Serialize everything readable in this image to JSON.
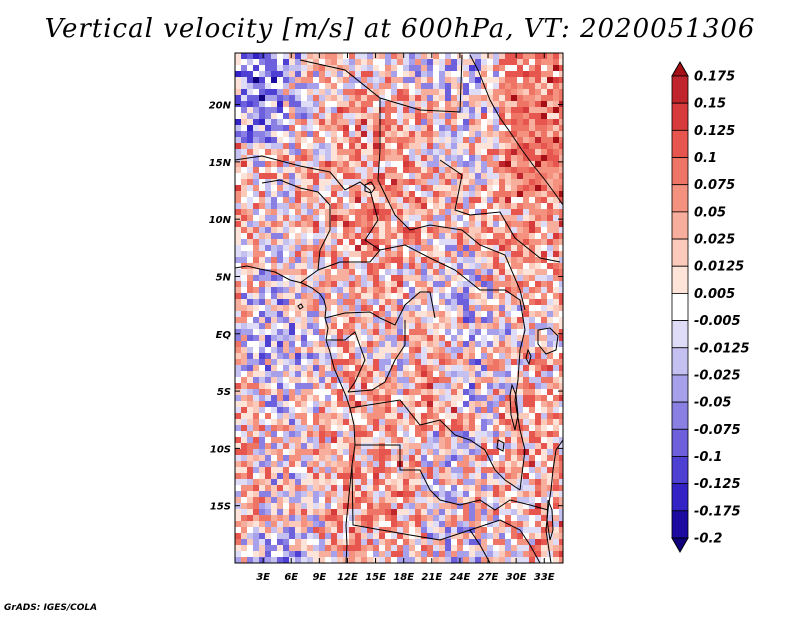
{
  "title": "Vertical velocity [m/s] at 600hPa, VT: 2020051306",
  "credit": "GrADS: IGES/COLA",
  "chart_data": {
    "type": "heatmap",
    "title": "Vertical velocity [m/s] at 600hPa, VT: 2020051306",
    "variable": "Vertical velocity",
    "units": "m/s",
    "level": "600hPa",
    "valid_time": "2020051306",
    "lon_range": [
      0,
      35
    ],
    "lat_range": [
      -20,
      24.5
    ],
    "x_ticks": [
      "3E",
      "6E",
      "9E",
      "12E",
      "15E",
      "18E",
      "21E",
      "24E",
      "27E",
      "30E",
      "33E"
    ],
    "x_tick_values": [
      3,
      6,
      9,
      12,
      15,
      18,
      21,
      24,
      27,
      30,
      33
    ],
    "y_ticks": [
      "20N",
      "15N",
      "10N",
      "5N",
      "EQ",
      "5S",
      "10S",
      "15S"
    ],
    "y_tick_values": [
      20,
      15,
      10,
      5,
      0,
      -5,
      -10,
      -15
    ],
    "colorbar": {
      "levels": [
        "0.175",
        "0.15",
        "0.125",
        "0.1",
        "0.075",
        "0.05",
        "0.025",
        "0.0125",
        "0.005",
        "-0.005",
        "-0.0125",
        "-0.025",
        "-0.05",
        "-0.075",
        "-0.1",
        "-0.125",
        "-0.175",
        "-0.2"
      ],
      "colors": [
        "#a50f15",
        "#c0242c",
        "#d73a3a",
        "#e6564f",
        "#ee7465",
        "#f4917f",
        "#f8ae9d",
        "#fbcaba",
        "#fde3d8",
        "#ffffff",
        "#dedcf7",
        "#c4c0f0",
        "#a7a0ea",
        "#8a80e3",
        "#6c60dc",
        "#4f40d4",
        "#3423c4",
        "#1c0ba0",
        "#10007d"
      ]
    }
  }
}
